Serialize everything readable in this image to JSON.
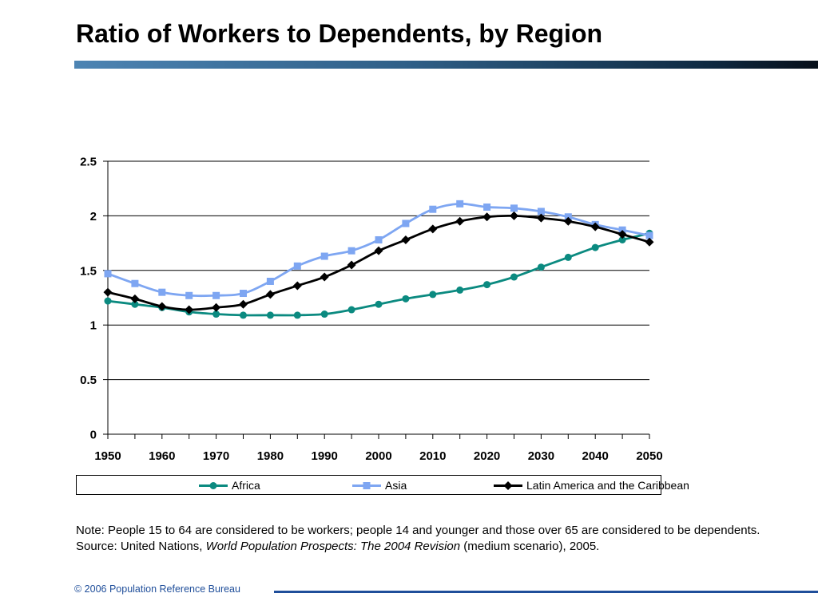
{
  "slide": {
    "title": "Ratio of Workers to Dependents, by Region",
    "note_text": "Note: People 15 to 64 are considered to be workers; people 14 and younger and those over 65 are considered to be dependents.",
    "source_prefix": "Source: United Nations, ",
    "source_italic": "World Population Prospects: The 2004 Revision",
    "source_suffix": " (medium scenario), 2005.",
    "footer": "© 2006 Population Reference Bureau"
  },
  "chart_data": {
    "type": "line",
    "ylim": [
      0,
      2.5
    ],
    "y_ticks": [
      "0",
      "0.5",
      "1",
      "1.5",
      "2",
      "2.5"
    ],
    "y_tick_values": [
      0,
      0.5,
      1,
      1.5,
      2,
      2.5
    ],
    "xlim": [
      1950,
      2050
    ],
    "x_ticks": [
      "1950",
      "1960",
      "1970",
      "1980",
      "1990",
      "2000",
      "2010",
      "2020",
      "2030",
      "2040",
      "2050"
    ],
    "x_tick_values": [
      1950,
      1960,
      1970,
      1980,
      1990,
      2000,
      2010,
      2020,
      2030,
      2040,
      2050
    ],
    "x": [
      1950,
      1955,
      1960,
      1965,
      1970,
      1975,
      1980,
      1985,
      1990,
      1995,
      2000,
      2005,
      2010,
      2015,
      2020,
      2025,
      2030,
      2035,
      2040,
      2045,
      2050
    ],
    "grid": true,
    "legend_position": "bottom",
    "series": [
      {
        "name": "Africa",
        "color": "#0b8a80",
        "marker": "circle",
        "values": [
          1.22,
          1.19,
          1.16,
          1.12,
          1.1,
          1.09,
          1.09,
          1.09,
          1.1,
          1.14,
          1.19,
          1.24,
          1.28,
          1.32,
          1.37,
          1.44,
          1.53,
          1.62,
          1.71,
          1.78,
          1.84
        ]
      },
      {
        "name": "Asia",
        "color": "#7ea6f2",
        "marker": "square",
        "values": [
          1.47,
          1.38,
          1.3,
          1.27,
          1.27,
          1.29,
          1.4,
          1.54,
          1.63,
          1.68,
          1.78,
          1.93,
          2.06,
          2.11,
          2.08,
          2.07,
          2.04,
          1.99,
          1.92,
          1.87,
          1.82
        ]
      },
      {
        "name": "Latin America and the Caribbean",
        "color": "#000000",
        "marker": "diamond",
        "values": [
          1.3,
          1.24,
          1.17,
          1.14,
          1.16,
          1.19,
          1.28,
          1.36,
          1.44,
          1.55,
          1.68,
          1.78,
          1.88,
          1.95,
          1.99,
          2.0,
          1.98,
          1.95,
          1.9,
          1.83,
          1.76
        ]
      }
    ]
  }
}
